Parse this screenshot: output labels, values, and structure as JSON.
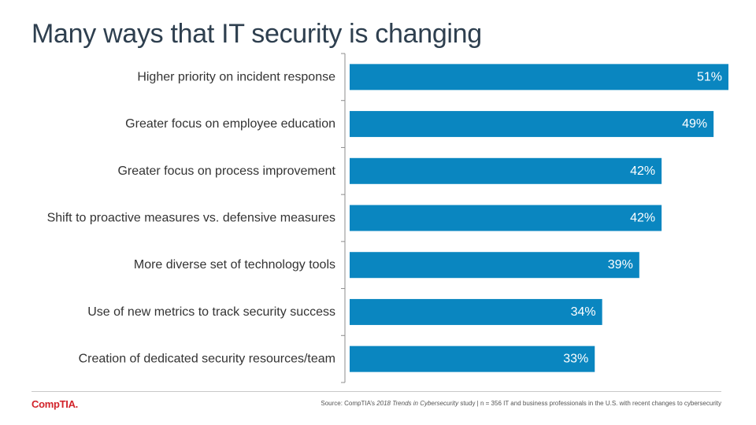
{
  "header": {
    "title": "Many ways that IT security is changing"
  },
  "footer": {
    "logo_text": "CompTIA.",
    "source_prefix": "Source: CompTIA’s ",
    "source_title": "2018 Trends in Cybersecurity",
    "source_suffix": " study | n = 356 IT and business professionals in the U.S. with recent changes to cybersecurity"
  },
  "colors": {
    "bar": "#0a86c0",
    "axis": "#8c8c8c",
    "title": "#2e3f4f",
    "logo": "#d2232a"
  },
  "chart_data": {
    "type": "bar",
    "orientation": "horizontal",
    "categories": [
      "Higher priority on incident response",
      "Greater focus on employee education",
      "Greater focus on process improvement",
      "Shift to proactive measures vs. defensive measures",
      "More diverse set of technology tools",
      "Use of new metrics to track security success",
      "Creation of dedicated security resources/team"
    ],
    "values": [
      51,
      49,
      42,
      42,
      39,
      34,
      33
    ],
    "value_labels": [
      "51%",
      "49%",
      "42%",
      "42%",
      "39%",
      "34%",
      "33%"
    ],
    "xlim": [
      0,
      51
    ],
    "grid": false,
    "legend": "none"
  }
}
